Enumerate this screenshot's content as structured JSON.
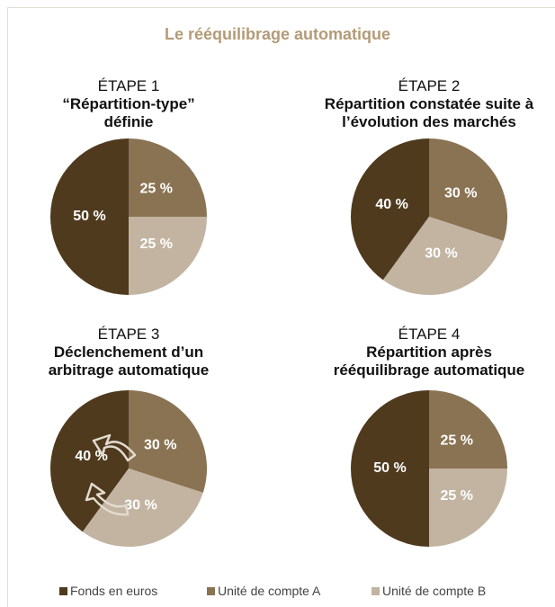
{
  "title": "Le rééquilibrage automatique",
  "chart_data": [
    {
      "type": "pie",
      "title": "ÉTAPE 1",
      "subtitle": "“Répartition-type” définie",
      "categories": [
        "Fonds en euros",
        "Unité de compte A",
        "Unité de compte B"
      ],
      "values": [
        50,
        25,
        25
      ],
      "value_labels": [
        "50 %",
        "25 %",
        "25 %"
      ],
      "colors": [
        "#4f3a1e",
        "#8a7352",
        "#c2b4a1"
      ]
    },
    {
      "type": "pie",
      "title": "ÉTAPE 2",
      "subtitle": "Répartition constatée suite à l’évolution des marchés",
      "categories": [
        "Fonds en euros",
        "Unité de compte A",
        "Unité de compte B"
      ],
      "values": [
        40,
        30,
        30
      ],
      "value_labels": [
        "40 %",
        "30 %",
        "30 %"
      ],
      "colors": [
        "#4f3a1e",
        "#8a7352",
        "#c2b4a1"
      ]
    },
    {
      "type": "pie",
      "title": "ÉTAPE 3",
      "subtitle": "Déclenchement d’un arbitrage automatique",
      "categories": [
        "Fonds en euros",
        "Unité de compte A",
        "Unité de compte B"
      ],
      "values": [
        40,
        30,
        30
      ],
      "value_labels": [
        "40 %",
        "30 %",
        "30 %"
      ],
      "colors": [
        "#4f3a1e",
        "#8a7352",
        "#c2b4a1"
      ]
    },
    {
      "type": "pie",
      "title": "ÉTAPE 4",
      "subtitle": "Répartition après rééquilibrage automatique",
      "categories": [
        "Fonds en euros",
        "Unité de compte A",
        "Unité de compte B"
      ],
      "values": [
        50,
        25,
        25
      ],
      "value_labels": [
        "50 %",
        "25 %",
        "25 %"
      ],
      "colors": [
        "#4f3a1e",
        "#8a7352",
        "#c2b4a1"
      ]
    }
  ]
}
